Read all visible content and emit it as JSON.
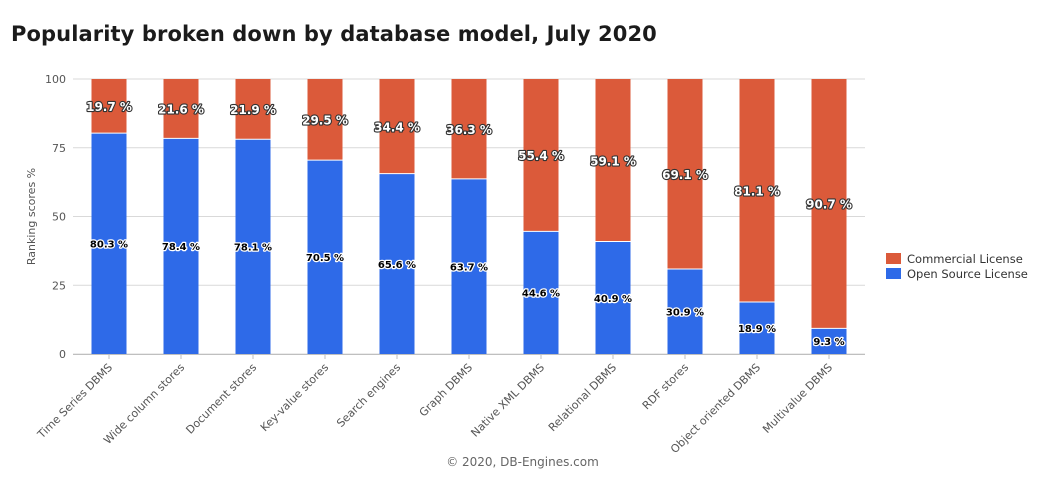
{
  "chart_data": {
    "type": "bar",
    "stacked": true,
    "title": "Popularity broken down by database model, July 2020",
    "xlabel": "",
    "ylabel": "Ranking scores %",
    "ylim": [
      0,
      100
    ],
    "yticks": [
      0,
      25,
      50,
      75,
      100
    ],
    "grid": true,
    "legend_position": "right",
    "categories": [
      "Time Series DBMS",
      "Wide column stores",
      "Document stores",
      "Key-value stores",
      "Search engines",
      "Graph DBMS",
      "Native XML DBMS",
      "Relational DBMS",
      "RDF stores",
      "Object oriented DBMS",
      "Multivalue DBMS"
    ],
    "series": [
      {
        "name": "Open Source License",
        "color": "#2e6ae8",
        "values": [
          80.3,
          78.4,
          78.1,
          70.5,
          65.6,
          63.7,
          44.6,
          40.9,
          30.9,
          18.9,
          9.3
        ],
        "labels": [
          "80.3 %",
          "78.4 %",
          "78.1 %",
          "70.5 %",
          "65.6 %",
          "63.7 %",
          "44.6 %",
          "40.9 %",
          "30.9 %",
          "18.9 %",
          "9.3 %"
        ]
      },
      {
        "name": "Commercial License",
        "color": "#db5a3a",
        "values": [
          19.7,
          21.6,
          21.9,
          29.5,
          34.4,
          36.3,
          55.4,
          59.1,
          69.1,
          81.1,
          90.7
        ],
        "labels": [
          "19.7 %",
          "21.6 %",
          "21.9 %",
          "29.5 %",
          "34.4 %",
          "36.3 %",
          "55.4 %",
          "59.1 %",
          "69.1 %",
          "81.1 %",
          "90.7 %"
        ]
      }
    ],
    "legend_order": [
      "Commercial License",
      "Open Source License"
    ]
  },
  "credit": "© 2020, DB-Engines.com"
}
